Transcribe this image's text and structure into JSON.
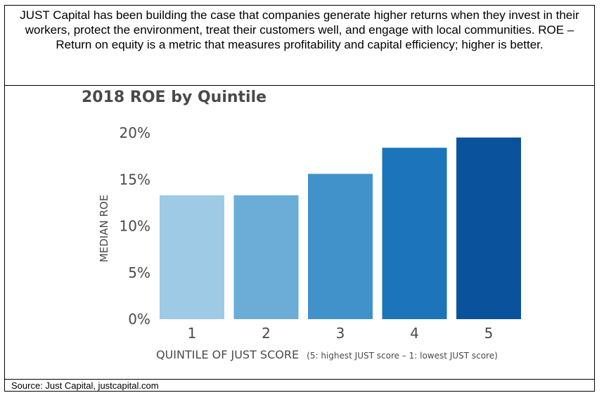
{
  "intro_text": "JUST Capital has been building the case that companies generate higher returns when they invest in their workers, protect the environment, treat their customers well, and engage with local communities. ROE – Return on equity is a metric that measures profitability and capital efficiency; higher is better.",
  "source_text": "Source: Just Capital, justcapital.com",
  "chart_data": {
    "type": "bar",
    "title": "2018 ROE by Quintile",
    "xlabel": "QUINTILE OF JUST SCORE",
    "xlabel_note": "(5: highest JUST score – 1: lowest JUST score)",
    "ylabel": "MEDIAN ROE",
    "categories": [
      "1",
      "2",
      "3",
      "4",
      "5"
    ],
    "values": [
      13.3,
      13.3,
      15.6,
      18.4,
      19.5
    ],
    "ylim": [
      0,
      20
    ],
    "yticks": [
      0,
      5,
      10,
      15,
      20
    ],
    "ytick_labels": [
      "0%",
      "5%",
      "10%",
      "15%",
      "20%"
    ],
    "bar_colors": [
      "#9ecae6",
      "#6badd6",
      "#4192cb",
      "#1c74bb",
      "#0b529c"
    ],
    "grid": false,
    "legend": "none"
  }
}
